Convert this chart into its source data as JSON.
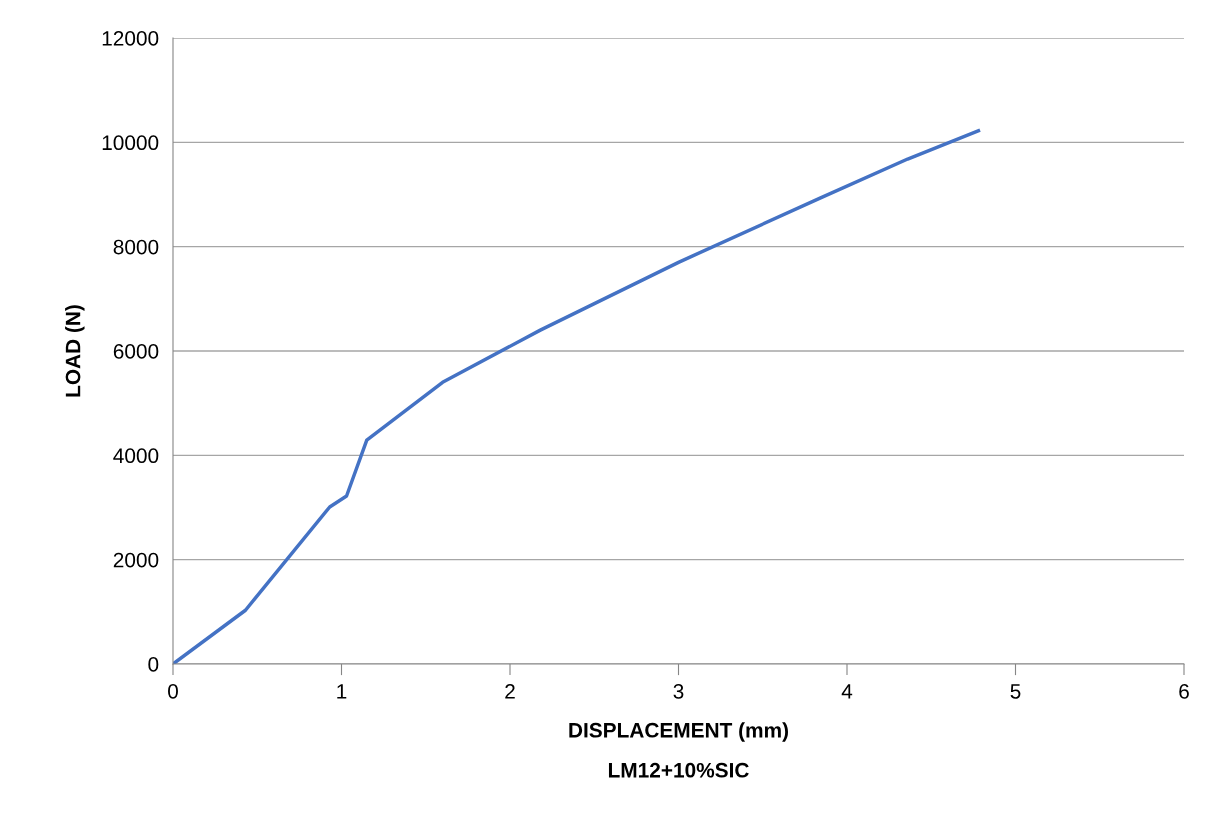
{
  "chart_data": {
    "type": "line",
    "xlabel": "DISPLACEMENT (mm)",
    "ylabel": "LOAD (N)",
    "annotations": [
      "LM12+10%SIC"
    ],
    "series": [
      {
        "color": "#4472c4",
        "x": [
          0,
          0.43,
          0.93,
          1.03,
          1.15,
          1.6,
          2.18,
          3.0,
          3.84,
          4.36,
          4.78
        ],
        "values": [
          0,
          1030,
          3010,
          3220,
          4290,
          5400,
          6400,
          7700,
          8930,
          9680,
          10220
        ]
      }
    ],
    "xlim": [
      0,
      6
    ],
    "xticks": [
      0,
      1,
      2,
      3,
      4,
      5,
      6
    ],
    "ylim": [
      0,
      12000
    ],
    "yticks": [
      0,
      2000,
      4000,
      6000,
      8000,
      10000,
      12000
    ],
    "grid": "y",
    "marker": "none",
    "line_style": "solid"
  }
}
